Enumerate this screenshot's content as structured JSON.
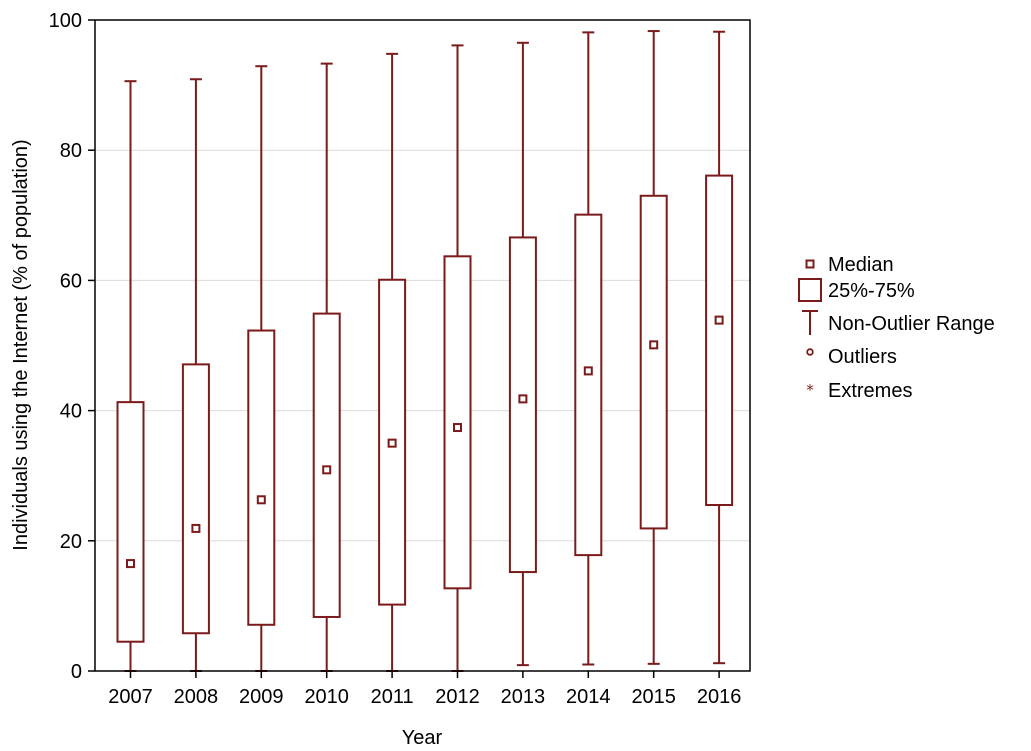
{
  "chart_data": {
    "type": "boxplot",
    "xlabel": "Year",
    "ylabel": "Individuals using the Internet (% of population)",
    "ylim": [
      0,
      100
    ],
    "yticks": [
      0,
      20,
      40,
      60,
      80,
      100
    ],
    "grid": "horizontal",
    "legend_position": "right",
    "categories": [
      "2007",
      "2008",
      "2009",
      "2010",
      "2011",
      "2012",
      "2013",
      "2014",
      "2015",
      "2016"
    ],
    "boxes": [
      {
        "year": "2007",
        "min": 0.0,
        "q1": 4.5,
        "median": 16.5,
        "q3": 41.3,
        "max": 90.6
      },
      {
        "year": "2008",
        "min": 0.0,
        "q1": 5.8,
        "median": 21.9,
        "q3": 47.1,
        "max": 90.9
      },
      {
        "year": "2009",
        "min": 0.0,
        "q1": 7.1,
        "median": 26.3,
        "q3": 52.3,
        "max": 92.9
      },
      {
        "year": "2010",
        "min": 0.0,
        "q1": 8.3,
        "median": 30.9,
        "q3": 54.9,
        "max": 93.3
      },
      {
        "year": "2011",
        "min": 0.0,
        "q1": 10.2,
        "median": 35.0,
        "q3": 60.1,
        "max": 94.8
      },
      {
        "year": "2012",
        "min": 0.0,
        "q1": 12.7,
        "median": 37.4,
        "q3": 63.7,
        "max": 96.1
      },
      {
        "year": "2013",
        "min": 0.9,
        "q1": 15.2,
        "median": 41.8,
        "q3": 66.6,
        "max": 96.5
      },
      {
        "year": "2014",
        "min": 1.0,
        "q1": 17.8,
        "median": 46.1,
        "q3": 70.1,
        "max": 98.1
      },
      {
        "year": "2015",
        "min": 1.1,
        "q1": 21.9,
        "median": 50.1,
        "q3": 73.0,
        "max": 98.3
      },
      {
        "year": "2016",
        "min": 1.2,
        "q1": 25.5,
        "median": 53.9,
        "q3": 76.1,
        "max": 98.2
      }
    ],
    "legend": [
      {
        "key": "median",
        "label": "Median"
      },
      {
        "key": "box",
        "label": "25%-75%"
      },
      {
        "key": "range",
        "label": "Non-Outlier Range"
      },
      {
        "key": "outliers",
        "label": "Outliers"
      },
      {
        "key": "extremes",
        "label": "Extremes"
      }
    ],
    "colors": {
      "series": "#7b1a1a",
      "grid": "#dcdcdc",
      "axis": "#000000"
    }
  }
}
